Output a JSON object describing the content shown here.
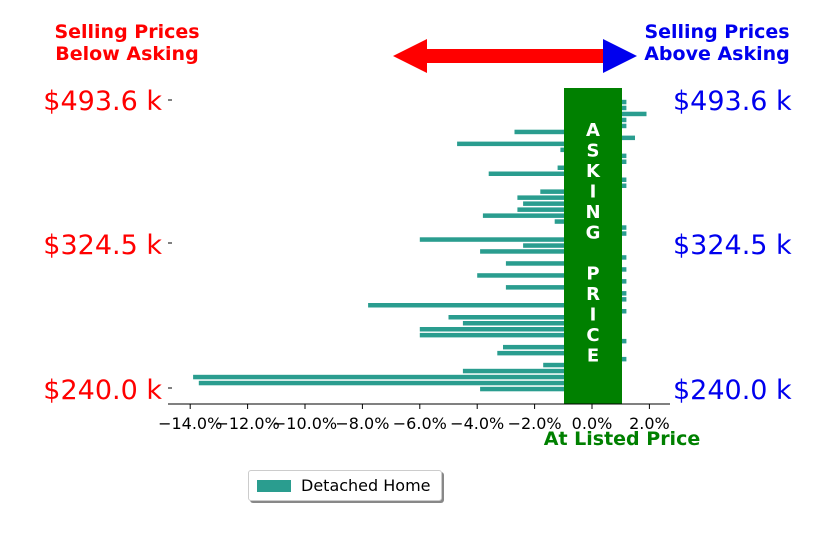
{
  "header": {
    "left_line1": "Selling Prices",
    "left_line2": "Below Asking",
    "right_line1": "Selling Prices",
    "right_line2": "Above Asking"
  },
  "price_labels": {
    "top": "$493.6 k",
    "mid": "$324.5 k",
    "bottom": "$240.0 k"
  },
  "asking_band": {
    "letters": [
      "A",
      "S",
      "K",
      "I",
      "N",
      "G",
      "",
      "P",
      "R",
      "I",
      "C",
      "E"
    ],
    "caption": "At Listed Price"
  },
  "legend": {
    "label": "Detached Home"
  },
  "colors": {
    "below": "#ff0000",
    "above": "#0000ee",
    "bars": "#2a9d8f",
    "asking": "#008000"
  },
  "chart_data": {
    "type": "bar",
    "orientation": "horizontal",
    "xlabel": "",
    "ylabel": "",
    "xlim": [
      -14.8,
      2.5
    ],
    "xticks": [
      "−14.0%",
      "−12.0%",
      "−10.0%",
      "−8.0%",
      "−6.0%",
      "−4.0%",
      "−2.0%",
      "0.0%",
      "2.0%"
    ],
    "xtick_values": [
      -14,
      -12,
      -10,
      -8,
      -6,
      -4,
      -2,
      0,
      2
    ],
    "series": [
      {
        "name": "Detached Home",
        "values": [
          -3.9,
          -13.7,
          -13.9,
          -4.5,
          -1.7,
          1.2,
          -3.3,
          -3.1,
          1.2,
          -6.0,
          -6.0,
          -4.5,
          -5.0,
          1.2,
          -7.8,
          1.2,
          1.2,
          -3.0,
          1.2,
          -4.0,
          1.2,
          -3.0,
          1.2,
          -3.9,
          -2.4,
          -6.0,
          1.2,
          1.2,
          -1.3,
          -3.8,
          -2.6,
          -2.4,
          -2.6,
          -1.8,
          1.2,
          1.2,
          -3.6,
          -1.2,
          1.2,
          1.2,
          -1.1,
          -4.7,
          1.5,
          -2.7,
          1.2,
          1.2,
          1.9,
          1.2,
          1.2
        ]
      }
    ]
  }
}
